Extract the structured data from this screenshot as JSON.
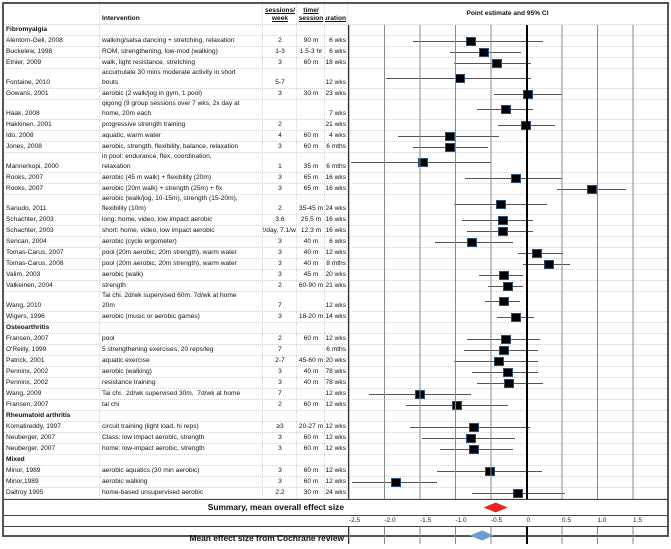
{
  "header": {
    "intervention": "Intervention",
    "sessions_line1": "sessions/",
    "sessions_line2": "week",
    "time_line1": "time/",
    "time_line2": "session",
    "duration": "duration",
    "plot": "Point estimate and 95% CI"
  },
  "colors": {
    "marker": "#000000",
    "summary_diamond": "#e8281e",
    "cochrane_diamond": "#6a9bd1"
  },
  "chart_data": {
    "type": "forest",
    "title": "Point estimate and 95% CI",
    "xlim": [
      -2.5,
      2.0
    ],
    "grid_values": [
      -2.0,
      -1.5,
      -1.0,
      -0.5,
      0,
      0.5,
      1.0,
      1.5
    ],
    "tick_labels": [
      "-2.5",
      "-2.0",
      "-1.5",
      "-1.0",
      "-0.5",
      "0",
      "0.5",
      "1.0",
      "1.5"
    ],
    "tick_values": [
      -2.5,
      -2.0,
      -1.5,
      -1.0,
      -0.5,
      0,
      0.5,
      1.0,
      1.5
    ],
    "groups": [
      {
        "name": "Fibromyalgia",
        "studies": [
          {
            "study": "Alentorn-Geli, 2008",
            "intervention": "walking/salsa dancing + stretching, relaxation",
            "sessions": "2",
            "time": "90 m",
            "duration": "6 wks",
            "estimate": -0.77,
            "ci": [
              -1.59,
              0.24
            ]
          },
          {
            "study": "Buckelew, 1998",
            "intervention": "ROM, strengthening, low-mod (walking)",
            "sessions": "1-3",
            "time": "1.5-3 hr",
            "duration": "6 wks",
            "estimate": -0.58,
            "ci": [
              -1.06,
              -0.07
            ]
          },
          {
            "study": "Etnier, 2009",
            "intervention": "walk, light resistance, stretching",
            "sessions": "3",
            "time": "60 m",
            "duration": "18 wks",
            "estimate": -0.4,
            "ci": [
              -1.01,
              0.08
            ]
          },
          {
            "study": "Fontaine, 2010",
            "intervention": "accumulate 30 mins moderate activity in short\nbouts",
            "sessions": "5-7",
            "time": "",
            "duration": "12 wks",
            "estimate": -0.92,
            "ci": [
              -1.97,
              0.08
            ]
          },
          {
            "study": "Gowans, 2001",
            "intervention": "aerobic (2 walk/jog in gym, 1 pool)",
            "sessions": "3",
            "time": "30 m",
            "duration": "23 wks",
            "estimate": 0.04,
            "ci": [
              -0.45,
              0.52
            ]
          },
          {
            "study": "Haak, 2008",
            "intervention": "qigong (9 group sessions over 7 wks, 2x day at\nhome, 20m each",
            "sessions": "",
            "time": "",
            "duration": "7 wks",
            "estimate": -0.28,
            "ci": [
              -0.69,
              0.11
            ]
          },
          {
            "study": "Hakkinen. 2001",
            "intervention": "progressive strength training",
            "sessions": "2",
            "time": "",
            "duration": "21 wks",
            "estimate": 0.01,
            "ci": [
              -0.39,
              0.42
            ]
          },
          {
            "study": "Ido, 2008",
            "intervention": "aquatic, warm water",
            "sessions": "4",
            "time": "60 m",
            "duration": "4 wks",
            "estimate": -1.07,
            "ci": [
              -1.8,
              -0.38
            ]
          },
          {
            "study": "Jones, 2008",
            "intervention": "aerobic, strength, flexibility, balance, relaxation",
            "sessions": "3",
            "time": "60 m",
            "duration": "6 mths",
            "estimate": -1.06,
            "ci": [
              -1.59,
              -0.53
            ]
          },
          {
            "study": "Mannerkopi, 2000",
            "intervention": "in pool: endurance, flex, coordination,\nrelaxation",
            "sessions": "1",
            "time": "35 m",
            "duration": "6 mths",
            "estimate": -1.44,
            "ci": [
              -2.46,
              -0.49
            ]
          },
          {
            "study": "Rooks, 2007",
            "intervention": "aerobic (45 m walk) + flexibility (20m)",
            "sessions": "3",
            "time": "65 m",
            "duration": "16 wks",
            "estimate": -0.14,
            "ci": [
              -0.85,
              0.51
            ]
          },
          {
            "study": "Rooks, 2007",
            "intervention": "aerobic (20m walk) + strength (25m) + flx",
            "sessions": "3",
            "time": "65 m",
            "duration": "16 wks",
            "estimate": 0.94,
            "ci": [
              0.44,
              1.42
            ]
          },
          {
            "study": "Sanudo, 2011",
            "intervention": "aerobic (walk/jog, 10-15m), strength (15-20m),\nflexibility (10m)",
            "sessions": "2",
            "time": "35-45 m",
            "duration": "24 wks",
            "estimate": -0.34,
            "ci": [
              -1.01,
              0.3
            ]
          },
          {
            "study": "Schachter, 2003",
            "intervention": "long: home, video, low impact aerobic",
            "sessions": "3.6",
            "time": "25.5 m",
            "duration": "16 wks",
            "estimate": -0.32,
            "ci": [
              -0.9,
              0.11
            ]
          },
          {
            "study": "Schachter, 2003",
            "intervention": "short: home, video, low impact aerobic",
            "sessions": "2/day, 7.1/wk",
            "time": "12.3 m",
            "duration": "16 wks",
            "estimate": -0.31,
            "ci": [
              -0.83,
              0.1
            ]
          },
          {
            "study": "Sencan, 2004",
            "intervention": "aerobic (cycle ergometer)",
            "sessions": "3",
            "time": "40 m",
            "duration": "6 wks",
            "estimate": -0.76,
            "ci": [
              -1.27,
              -0.17
            ]
          },
          {
            "study": "Tomas-Carus, 2007",
            "intervention": "pool (20m aerobic, 20m strength), warm water",
            "sessions": "3",
            "time": "40 m",
            "duration": "12 wks",
            "estimate": 0.16,
            "ci": [
              -0.11,
              0.53
            ]
          },
          {
            "study": "Tomas-Carus, 2008",
            "intervention": "pool (20m aerobic, 20m strength), warm water",
            "sessions": "3",
            "time": "40 m",
            "duration": "8 mths",
            "estimate": 0.33,
            "ci": [
              -0.03,
              0.62
            ]
          },
          {
            "study": "Valim, 2003",
            "intervention": "aerobic (walk)",
            "sessions": "3",
            "time": "45 m",
            "duration": "20 wks",
            "estimate": -0.3,
            "ci": [
              -0.65,
              -0.04
            ]
          },
          {
            "study": "Valkeinen, 2004",
            "intervention": "strength",
            "sessions": "2",
            "time": "60-90 m",
            "duration": "21 wks",
            "estimate": -0.25,
            "ci": [
              -0.53,
              -0.03
            ]
          },
          {
            "study": "Wang, 2010",
            "intervention": "Tai chi. 2d/wk supervised 60m. 7d/wk at home\n20m",
            "sessions": "7",
            "time": "",
            "duration": "12 wks",
            "estimate": -0.3,
            "ci": [
              -0.57,
              -0.08
            ]
          },
          {
            "study": "Wigers, 1996",
            "intervention": "aerobic (music or aerobic games)",
            "sessions": "3",
            "time": "18-20 m",
            "duration": "14 wks",
            "estimate": -0.14,
            "ci": [
              -0.4,
              0.12
            ]
          }
        ]
      },
      {
        "name": "Osteoarthritis",
        "studies": [
          {
            "study": "Fransen, 2007",
            "intervention": "pool",
            "sessions": "2",
            "time": "60 m",
            "duration": "12 wks",
            "estimate": -0.27,
            "ci": [
              -0.82,
              0.2
            ]
          },
          {
            "study": "O'Reilly, 1999",
            "intervention": "5 strengthening exercises, 20 reps/leg",
            "sessions": "7",
            "time": "",
            "duration": "6 mths",
            "estimate": -0.3,
            "ci": [
              -0.86,
              0.17
            ]
          },
          {
            "study": "Patrick, 2001",
            "intervention": "aquatic exercise",
            "sessions": "2-7",
            "time": "45-60 m",
            "duration": "20 wks",
            "estimate": -0.38,
            "ci": [
              -1.01,
              0.17
            ]
          },
          {
            "study": "Penninx, 2002",
            "intervention": "aerobic (walking)",
            "sessions": "3",
            "time": "40 m",
            "duration": "78 wks",
            "estimate": -0.24,
            "ci": [
              -0.75,
              0.17
            ]
          },
          {
            "study": "Penninx, 2002",
            "intervention": "resistance training",
            "sessions": "3",
            "time": "40 m",
            "duration": "78 wks",
            "estimate": -0.23,
            "ci": [
              -0.69,
              0.25
            ]
          },
          {
            "study": "Wang, 2009",
            "intervention": "Tai chi.  2d/wk supervised 30m.  7d/wk at home",
            "sessions": "7",
            "time": "",
            "duration": "12 wks",
            "estimate": -1.48,
            "ci": [
              -2.21,
              -0.77
            ]
          },
          {
            "study": "Fransen, 2007",
            "intervention": "tai chi",
            "sessions": "2",
            "time": "60 m",
            "duration": "12 wks",
            "estimate": -0.96,
            "ci": [
              -1.69,
              -0.25
            ]
          }
        ]
      },
      {
        "name": "Rheumatoid arthritis",
        "studies": [
          {
            "study": "Komatireddy, 1997",
            "intervention": "circuit training (light load, hi reps)",
            "sessions": "≥3",
            "time": "20-27 m",
            "duration": "12 wks",
            "estimate": -0.73,
            "ci": [
              -1.63,
              0.07
            ]
          },
          {
            "study": "Neuberger, 2007",
            "intervention": "Class: low impact aerobic, strength",
            "sessions": "3",
            "time": "60 m",
            "duration": "12 wks",
            "estimate": -0.77,
            "ci": [
              -1.46,
              -0.15
            ]
          },
          {
            "study": "Neuberger, 2007",
            "intervention": "home: low-impact aerobic, strength",
            "sessions": "3",
            "time": "60 m",
            "duration": "12 wks",
            "estimate": -0.72,
            "ci": [
              -1.2,
              -0.17
            ]
          }
        ]
      },
      {
        "name": "Mixed",
        "studies": [
          {
            "study": "Minor, 1989",
            "intervention": "aerobic aquatics (30 min aerobic)",
            "sessions": "3",
            "time": "60 m",
            "duration": "12 wks",
            "estimate": -0.5,
            "ci": [
              -1.24,
              0.23
            ]
          },
          {
            "study": "Minor,1989",
            "intervention": "aerobic walking",
            "sessions": "3",
            "time": "60 m",
            "duration": "12 wks",
            "estimate": -1.83,
            "ci": [
              -2.45,
              -1.24
            ]
          },
          {
            "study": "Daltroy 1995",
            "intervention": "home-based unsupervised aerobic",
            "sessions": "2.2",
            "time": "30 m",
            "duration": "24 wks",
            "estimate": -0.1,
            "ci": [
              -0.75,
              0.55
            ]
          }
        ]
      }
    ],
    "summary": {
      "label": "Summary, mean overall effect size",
      "estimate": -0.42,
      "ci": [
        -0.59,
        -0.25
      ]
    },
    "cochrane": {
      "label": "Mean effect size from Cochrane review",
      "estimate": -0.61,
      "ci": [
        -0.79,
        -0.45
      ]
    }
  }
}
